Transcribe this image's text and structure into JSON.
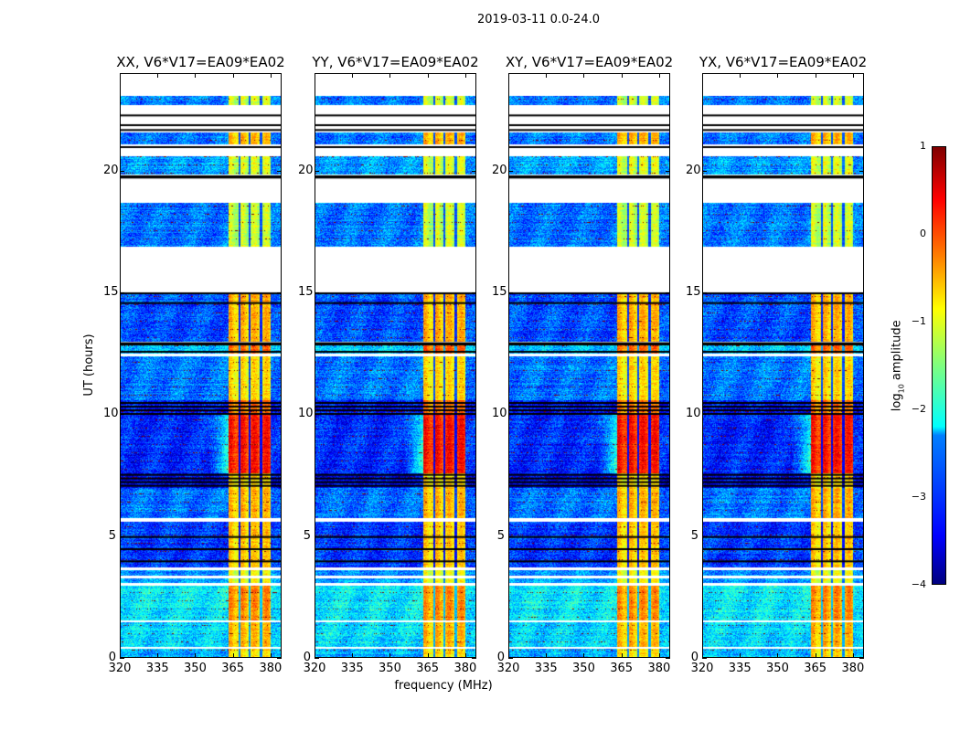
{
  "figure_title": "2019-03-11 0.0-24.0",
  "chart_data": {
    "type": "heatmap",
    "title": "2019-03-11 0.0-24.0",
    "xlabel": "frequency (MHz)",
    "ylabel": "UT (hours)",
    "xlim": [
      320,
      384.4
    ],
    "ylim": [
      0,
      24
    ],
    "xticks": [
      "320",
      "335",
      "350",
      "365",
      "380"
    ],
    "yticks": [
      "0",
      "5",
      "10",
      "15",
      "20"
    ],
    "colorbar": {
      "label_main": "log",
      "label_sub": "10",
      "label_rest": " amplitude",
      "range": [
        -4,
        1
      ],
      "ticks": [
        "1",
        "0",
        "−1",
        "−2",
        "−3",
        "−4"
      ],
      "colormap": "jet"
    },
    "rfi_band_mhz": [
      363,
      380
    ],
    "band_dividers_mhz": [
      367.5,
      371.5,
      376
    ],
    "panels": [
      {
        "title": "XX, V6*V17=EA09*EA02",
        "seed": 1
      },
      {
        "title": "YY, V6*V17=EA09*EA02",
        "seed": 2
      },
      {
        "title": "XY, V6*V17=EA09*EA02",
        "seed": 3
      },
      {
        "title": "YX, V6*V17=EA09*EA02",
        "seed": 4
      }
    ],
    "time_blocks": [
      {
        "start": 0.0,
        "end": 0.4,
        "base": -2.5,
        "band": -0.8
      },
      {
        "start": 0.45,
        "end": 1.5,
        "base": -2.3,
        "band": -0.6
      },
      {
        "start": 1.55,
        "end": 3.0,
        "base": -2.2,
        "band": -0.4
      },
      {
        "start": 3.1,
        "end": 3.3,
        "base": -2.6,
        "band": -1.0
      },
      {
        "start": 3.4,
        "end": 3.6,
        "base": -2.7,
        "band": -1.0
      },
      {
        "start": 3.75,
        "end": 5.6,
        "base": -3.1,
        "band": -0.7
      },
      {
        "start": 5.75,
        "end": 7.0,
        "base": -2.8,
        "band": -0.6
      },
      {
        "start": 7.0,
        "end": 7.6,
        "base": -3.4,
        "band": -0.8
      },
      {
        "start": 7.6,
        "end": 10.0,
        "base": -3.2,
        "band": 0.2
      },
      {
        "start": 10.0,
        "end": 10.6,
        "base": -3.3,
        "band": -0.3
      },
      {
        "start": 10.6,
        "end": 12.4,
        "base": -2.8,
        "band": -0.8
      },
      {
        "start": 12.5,
        "end": 12.9,
        "base": -2.4,
        "band": -0.2
      },
      {
        "start": 13.0,
        "end": 15.0,
        "base": -3.0,
        "band": -0.6
      },
      {
        "start": 16.9,
        "end": 18.7,
        "base": -2.8,
        "band": -1.2
      },
      {
        "start": 19.85,
        "end": 20.6,
        "base": -2.6,
        "band": -1.1
      },
      {
        "start": 21.1,
        "end": 21.6,
        "base": -2.8,
        "band": -0.6
      },
      {
        "start": 22.7,
        "end": 23.1,
        "base": -2.8,
        "band": -1.2
      }
    ],
    "flagged_lines_hours": [
      4.0,
      4.5,
      5.0,
      7.1,
      7.25,
      7.4,
      7.55,
      10.05,
      10.2,
      10.35,
      10.5,
      12.6,
      12.9,
      12.95,
      14.6,
      15.0,
      19.75,
      19.8,
      21.0,
      21.7,
      21.9,
      22.3
    ]
  }
}
